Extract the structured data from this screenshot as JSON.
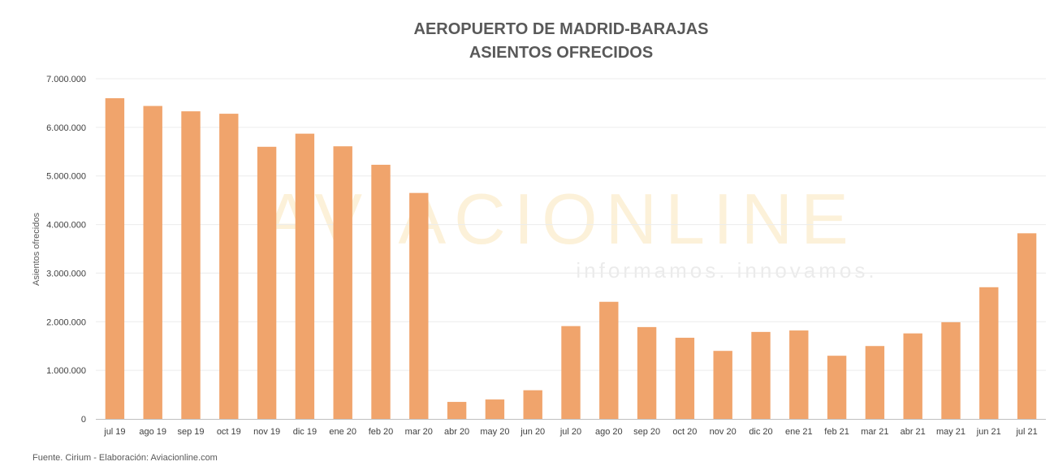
{
  "source_note": "Fuente. Cirium - Elaboración: Aviacionline.com",
  "watermark": {
    "brand": "AVIACIONLINE",
    "tagline": "informamos. innovamos."
  },
  "colors": {
    "bar": "#f0a46c",
    "grid": "#ececec",
    "axis": "#bfbfbf"
  },
  "chart_data": {
    "type": "bar",
    "title_lines": [
      "AEROPUERTO DE MADRID-BARAJAS",
      "ASIENTOS OFRECIDOS"
    ],
    "ylabel": "Asientos ofrecidos",
    "xlabel": "",
    "ylim": [
      0,
      7000000
    ],
    "yticks": [
      0,
      1000000,
      2000000,
      3000000,
      4000000,
      5000000,
      6000000,
      7000000
    ],
    "ytick_labels": [
      "0",
      "1.000.000",
      "2.000.000",
      "3.000.000",
      "4.000.000",
      "5.000.000",
      "6.000.000",
      "7.000.000"
    ],
    "grid": true,
    "legend": "none",
    "categories": [
      "jul 19",
      "ago 19",
      "sep 19",
      "oct 19",
      "nov 19",
      "dic 19",
      "ene 20",
      "feb 20",
      "mar 20",
      "abr 20",
      "may 20",
      "jun 20",
      "jul 20",
      "ago 20",
      "sep 20",
      "oct 20",
      "nov 20",
      "dic 20",
      "ene 21",
      "feb 21",
      "mar 21",
      "abr 21",
      "may 21",
      "jun 21",
      "jul 21"
    ],
    "values": [
      6600000,
      6440000,
      6330000,
      6280000,
      5600000,
      5870000,
      5610000,
      5230000,
      4650000,
      350000,
      400000,
      590000,
      1910000,
      2410000,
      1890000,
      1670000,
      1400000,
      1790000,
      1820000,
      1300000,
      1500000,
      1760000,
      1990000,
      2710000,
      3820000
    ]
  }
}
